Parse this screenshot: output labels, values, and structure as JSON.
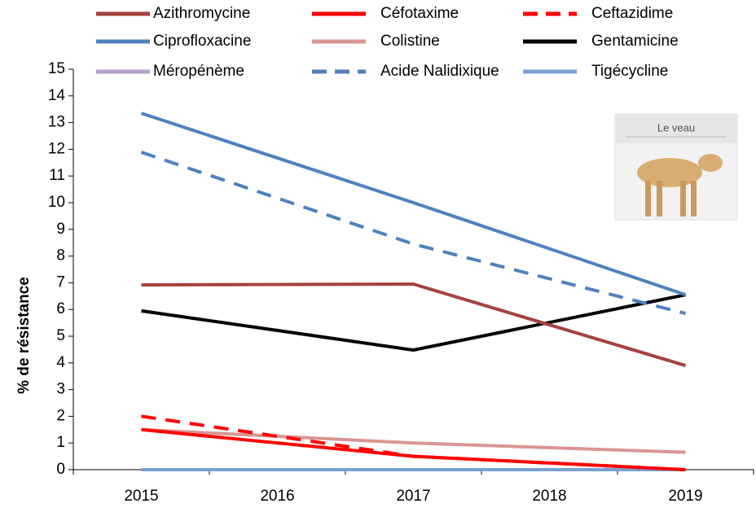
{
  "chart_data": {
    "type": "line",
    "y_label": "% de résistance",
    "image_label": "Le veau",
    "x": [
      2015,
      2017,
      2019
    ],
    "xlim": [
      2014.5,
      2019.5
    ],
    "xticks": [
      2015,
      2016,
      2017,
      2018,
      2019
    ],
    "ylim": [
      0,
      15
    ],
    "yticks": [
      0,
      1,
      2,
      3,
      4,
      5,
      6,
      7,
      8,
      9,
      10,
      11,
      12,
      13,
      14,
      15
    ],
    "series": [
      {
        "name": "Azithromycine",
        "color": "#a5423f",
        "dash": false,
        "values": [
          6.92,
          6.95,
          3.9
        ]
      },
      {
        "name": "Céfotaxime",
        "color": "#ff0000",
        "dash": false,
        "values": [
          1.5,
          0.5,
          0
        ]
      },
      {
        "name": "Ceftazidime",
        "color": "#ff0000",
        "dash": true,
        "values": [
          2.0,
          0.5,
          0
        ]
      },
      {
        "name": "Ciprofloxacine",
        "color": "#4f81bd",
        "dash": false,
        "values": [
          13.35,
          10.0,
          6.55
        ]
      },
      {
        "name": "Colistine",
        "color": "#d99594",
        "dash": false,
        "values": [
          1.5,
          1.0,
          0.65
        ]
      },
      {
        "name": "Gentamicine",
        "color": "#000000",
        "dash": false,
        "values": [
          5.95,
          4.48,
          6.55
        ]
      },
      {
        "name": "Méropénème",
        "color": "#b3a2c7",
        "dash": false,
        "values": [
          0,
          0,
          0
        ]
      },
      {
        "name": "Acide Nalidixique",
        "color": "#4f81bd",
        "dash": true,
        "values": [
          11.89,
          8.45,
          5.85
        ]
      },
      {
        "name": "Tigécycline",
        "color": "#7ba0d4",
        "dash": false,
        "values": [
          0,
          0,
          0
        ]
      }
    ]
  }
}
